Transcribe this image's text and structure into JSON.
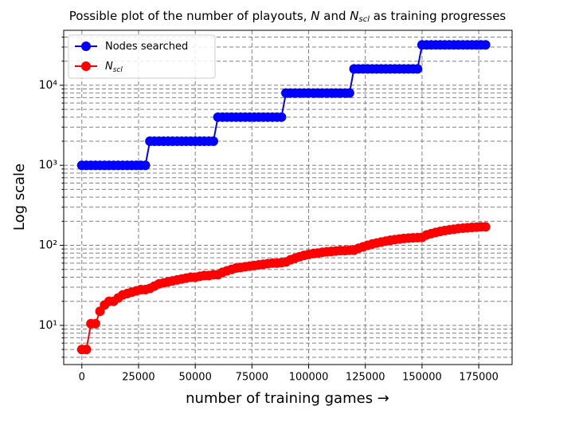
{
  "chart_data": {
    "type": "line",
    "title": [
      "Possible plot of the number of playouts, ",
      "N",
      " and ",
      "N",
      "scl",
      " as training progresses"
    ],
    "xlabel": "number of training games  →",
    "ylabel": "Log scale",
    "log_y": true,
    "grid": true,
    "legend": "upper left",
    "xlim": [
      -8000,
      189700
    ],
    "ylim": [
      3.24,
      48600
    ],
    "xticks": [
      0,
      25000,
      50000,
      75000,
      100000,
      125000,
      150000,
      175000
    ],
    "yticks": [
      {
        "value": 10,
        "label": "10¹"
      },
      {
        "value": 100,
        "label": "10²"
      },
      {
        "value": 1000,
        "label": "10³"
      },
      {
        "value": 10000,
        "label": "10⁴"
      }
    ],
    "yminorticks": [
      4,
      5,
      6,
      7,
      8,
      9,
      20,
      30,
      40,
      50,
      60,
      70,
      80,
      90,
      200,
      300,
      400,
      500,
      600,
      700,
      800,
      900,
      2000,
      3000,
      4000,
      5000,
      6000,
      7000,
      8000,
      9000,
      20000,
      30000,
      40000
    ],
    "x": [
      0,
      2000,
      4000,
      6000,
      8000,
      10000,
      12000,
      14000,
      16000,
      18000,
      20000,
      22000,
      24000,
      26000,
      28000,
      30000,
      32000,
      34000,
      36000,
      38000,
      40000,
      42000,
      44000,
      46000,
      48000,
      50000,
      52000,
      54000,
      56000,
      58000,
      60000,
      62000,
      64000,
      66000,
      68000,
      70000,
      72000,
      74000,
      76000,
      78000,
      80000,
      82000,
      84000,
      86000,
      88000,
      90000,
      92000,
      94000,
      96000,
      98000,
      100000,
      102000,
      104000,
      106000,
      108000,
      110000,
      112000,
      114000,
      116000,
      118000,
      120000,
      122000,
      124000,
      126000,
      128000,
      130000,
      132000,
      134000,
      136000,
      138000,
      140000,
      142000,
      144000,
      146000,
      148000,
      150000,
      152000,
      154000,
      156000,
      158000,
      160000,
      162000,
      164000,
      166000,
      168000,
      170000,
      172000,
      174000,
      176000,
      178000
    ],
    "series": [
      {
        "name": "Nodes searched",
        "color": "#0000ff",
        "values": [
          1000,
          1000,
          1000,
          1000,
          1000,
          1000,
          1000,
          1000,
          1000,
          1000,
          1000,
          1000,
          1000,
          1000,
          1000,
          2000,
          2000,
          2000,
          2000,
          2000,
          2000,
          2000,
          2000,
          2000,
          2000,
          2000,
          2000,
          2000,
          2000,
          2000,
          4000,
          4000,
          4000,
          4000,
          4000,
          4000,
          4000,
          4000,
          4000,
          4000,
          4000,
          4000,
          4000,
          4000,
          4000,
          8000,
          8000,
          8000,
          8000,
          8000,
          8000,
          8000,
          8000,
          8000,
          8000,
          8000,
          8000,
          8000,
          8000,
          8000,
          16000,
          16000,
          16000,
          16000,
          16000,
          16000,
          16000,
          16000,
          16000,
          16000,
          16000,
          16000,
          16000,
          16000,
          16000,
          32000,
          32000,
          32000,
          32000,
          32000,
          32000,
          32000,
          32000,
          32000,
          32000,
          32000,
          32000,
          32000,
          32000,
          32000
        ]
      },
      {
        "name": "N",
        "name_sub": "scl",
        "color": "#ff0000",
        "values": [
          5,
          5,
          10.5,
          10.5,
          15,
          18,
          20,
          20,
          22,
          24,
          25,
          26,
          27,
          28,
          28,
          29,
          31,
          33,
          34,
          35,
          36,
          37,
          38,
          39,
          40,
          40,
          41,
          42,
          42,
          43,
          43,
          46,
          48,
          50,
          52,
          53,
          54,
          55,
          56,
          57,
          58,
          59,
          60,
          60,
          61,
          62,
          66,
          69,
          72,
          75,
          77,
          79,
          80,
          82,
          83,
          84,
          85,
          86,
          86,
          87,
          87,
          92,
          96,
          100,
          104,
          107,
          110,
          113,
          116,
          118,
          120,
          122,
          123,
          124,
          125,
          126,
          135,
          140,
          145,
          149,
          153,
          156,
          159,
          162,
          164,
          166,
          168,
          169,
          170,
          170
        ]
      }
    ]
  }
}
